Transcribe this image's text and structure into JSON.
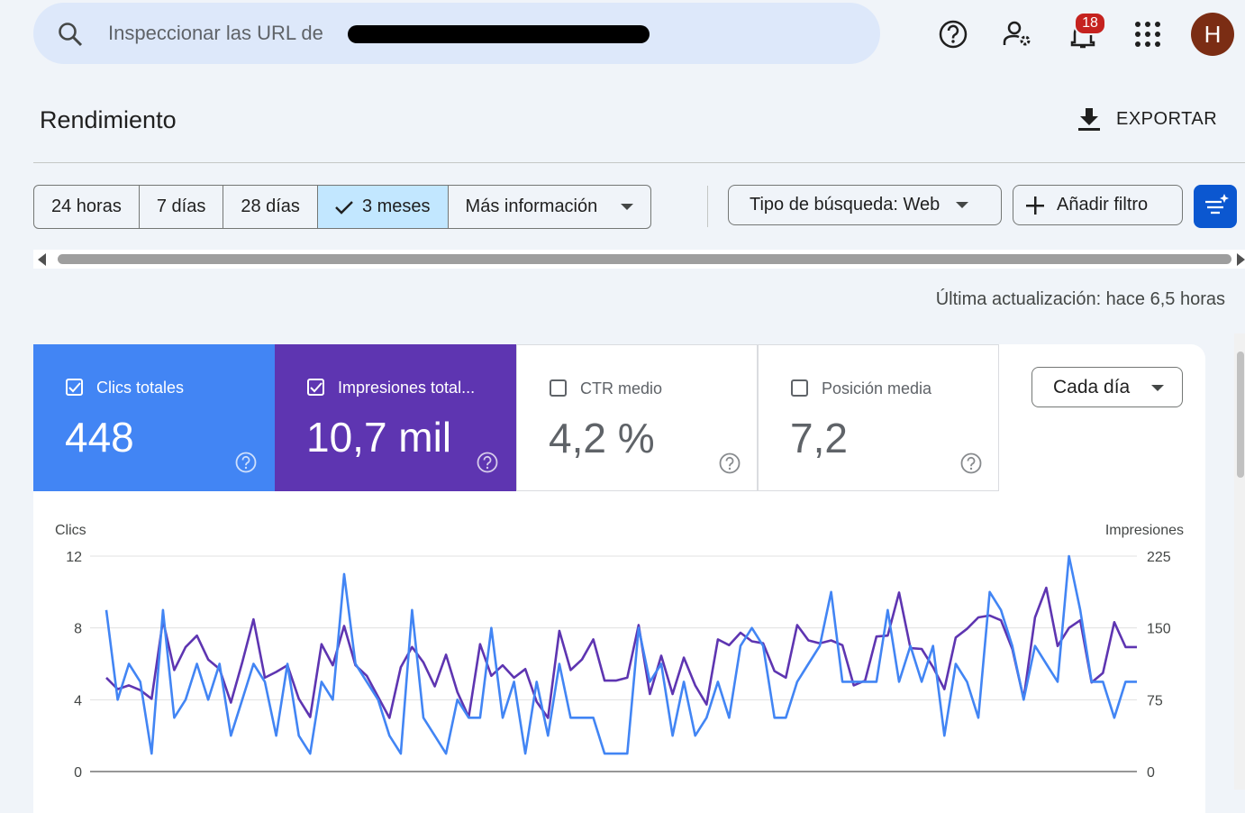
{
  "search": {
    "placeholder": "Inspeccionar las URL de"
  },
  "header": {
    "notifications": 18,
    "avatar": "H",
    "title": "Rendimiento",
    "export": "EXPORTAR"
  },
  "filters": {
    "ranges": [
      "24 horas",
      "7 días",
      "28 días",
      "3 meses",
      "Más información"
    ],
    "selected_range": 3,
    "search_type": "Tipo de búsqueda: Web",
    "add_filter": "Añadir filtro"
  },
  "last_update": "Última actualización: hace 6,5 horas",
  "metrics": [
    {
      "label": "Clics totales",
      "value": "448",
      "checked": true,
      "color": "#4285f4"
    },
    {
      "label": "Impresiones total...",
      "value": "10,7 mil",
      "checked": true,
      "color": "#5e35b1"
    },
    {
      "label": "CTR medio",
      "value": "4,2 %",
      "checked": false,
      "color": "#ffffff"
    },
    {
      "label": "Posición media",
      "value": "7,2",
      "checked": false,
      "color": "#ffffff"
    }
  ],
  "granularity": "Cada día",
  "chart_data": {
    "type": "line",
    "y_label": "Clics",
    "y2_label": "Impresiones",
    "ylim": [
      0,
      12
    ],
    "yticks": [
      0,
      4,
      8,
      12
    ],
    "y2lim": [
      0,
      225
    ],
    "y2ticks": [
      0,
      75,
      150,
      225
    ],
    "grid": true,
    "series": [
      {
        "color": "#5e35b1",
        "axis": "y2",
        "values": [
          98,
          86,
          90,
          85,
          76,
          158,
          106,
          130,
          142,
          117,
          107,
          72,
          114,
          159,
          98,
          104,
          111,
          76,
          57,
          133,
          111,
          152,
          111,
          100,
          78,
          56,
          109,
          130,
          114,
          89,
          122,
          83,
          57,
          133,
          100,
          111,
          98,
          107,
          73,
          56,
          147,
          106,
          117,
          138,
          95,
          95,
          98,
          153,
          81,
          121,
          81,
          119,
          90,
          70,
          138,
          132,
          145,
          136,
          134,
          105,
          98,
          153,
          137,
          134,
          137,
          132,
          90,
          95,
          141,
          142,
          187,
          129,
          128,
          109,
          86,
          140,
          149,
          161,
          163,
          158,
          128,
          76,
          161,
          192,
          131,
          150,
          158,
          93,
          103,
          156,
          130,
          130
        ]
      },
      {
        "color": "#4285f4",
        "values": [
          9,
          4,
          6,
          5,
          1,
          9,
          3,
          4,
          6,
          4,
          6,
          2,
          4,
          6,
          5,
          2,
          6,
          2,
          1,
          5,
          4,
          11,
          6,
          5,
          4,
          2,
          1,
          9,
          3,
          2,
          1,
          4,
          3,
          3,
          8,
          3,
          5,
          1,
          5,
          2,
          6,
          3,
          3,
          3,
          1,
          1,
          1,
          8,
          5,
          6,
          2,
          5,
          2,
          3,
          5,
          3,
          7,
          8,
          7,
          3,
          3,
          5,
          6,
          7,
          10,
          5,
          5,
          5,
          5,
          9,
          5,
          7,
          5,
          7,
          2,
          6,
          5,
          3,
          10,
          9,
          7,
          4,
          7,
          6,
          5,
          12,
          9,
          5,
          5,
          3,
          5,
          5
        ]
      }
    ]
  }
}
